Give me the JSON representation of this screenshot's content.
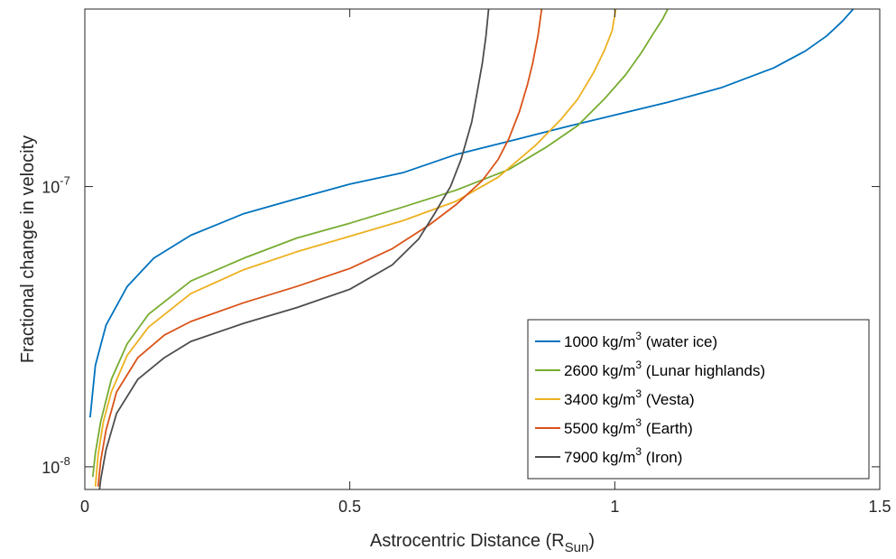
{
  "chart_data": {
    "type": "line",
    "xlabel": "Astrocentric Distance (R",
    "xlabel_sub": "Sun",
    "xlabel_close": ")",
    "ylabel": "Fractional change in velocity",
    "xlim": [
      0,
      1.5
    ],
    "ylim": [
      8.3e-09,
      4.3e-07
    ],
    "yscale": "log",
    "grid": false,
    "legend_position": "bottom-right",
    "x_ticks": [
      {
        "value": 0,
        "label": "0"
      },
      {
        "value": 0.5,
        "label": "0.5"
      },
      {
        "value": 1,
        "label": "1"
      },
      {
        "value": 1.5,
        "label": "1.5"
      }
    ],
    "y_ticks": [
      {
        "value": 1e-08,
        "base": "10",
        "exp": "-8"
      },
      {
        "value": 1e-07,
        "base": "10",
        "exp": "-7"
      }
    ],
    "series": [
      {
        "name": "1000 kg/m",
        "exp": "3",
        "suffix": " (water ice)",
        "color": "#0072BD",
        "x": [
          0.01,
          0.02,
          0.04,
          0.08,
          0.13,
          0.2,
          0.3,
          0.4,
          0.5,
          0.6,
          0.7,
          0.8,
          0.9,
          1.0,
          1.1,
          1.2,
          1.3,
          1.36,
          1.4,
          1.43,
          1.45
        ],
        "y": [
          1.5e-08,
          2.3e-08,
          3.2e-08,
          4.4e-08,
          5.55e-08,
          6.7e-08,
          8e-08,
          9.05e-08,
          1.02e-07,
          1.12e-07,
          1.3e-07,
          1.45e-07,
          1.62e-07,
          1.8e-07,
          2e-07,
          2.25e-07,
          2.65e-07,
          3.05e-07,
          3.45e-07,
          3.9e-07,
          4.3e-07
        ]
      },
      {
        "name": "2600 kg/m",
        "exp": "3",
        "suffix": " (Lunar highlands)",
        "color": "#77AC30",
        "x": [
          0.015,
          0.02,
          0.03,
          0.05,
          0.08,
          0.12,
          0.2,
          0.3,
          0.4,
          0.5,
          0.6,
          0.7,
          0.8,
          0.87,
          0.93,
          0.98,
          1.02,
          1.05,
          1.07,
          1.09,
          1.1
        ],
        "y": [
          9.2e-09,
          1.12e-08,
          1.45e-08,
          2.05e-08,
          2.75e-08,
          3.5e-08,
          4.6e-08,
          5.55e-08,
          6.55e-08,
          7.4e-08,
          8.45e-08,
          9.7e-08,
          1.15e-07,
          1.38e-07,
          1.65e-07,
          2.05e-07,
          2.5e-07,
          3e-07,
          3.45e-07,
          3.95e-07,
          4.3e-07
        ]
      },
      {
        "name": "3400 kg/m",
        "exp": "3",
        "suffix": " (Vesta)",
        "color": "#EDB120",
        "x": [
          0.02,
          0.025,
          0.035,
          0.05,
          0.08,
          0.12,
          0.2,
          0.3,
          0.4,
          0.5,
          0.6,
          0.7,
          0.78,
          0.85,
          0.9,
          0.93,
          0.96,
          0.98,
          0.995,
          1.002
        ],
        "y": [
          8.5e-09,
          1.1e-08,
          1.45e-08,
          1.85e-08,
          2.5e-08,
          3.15e-08,
          4.15e-08,
          5.05e-08,
          5.85e-08,
          6.65e-08,
          7.55e-08,
          8.85e-08,
          1.08e-07,
          1.4e-07,
          1.75e-07,
          2.05e-07,
          2.55e-07,
          3.05e-07,
          3.6e-07,
          4.3e-07
        ]
      },
      {
        "name": "5500 kg/m",
        "exp": "3",
        "suffix": " (Earth)",
        "color": "#D95319",
        "x": [
          0.025,
          0.03,
          0.04,
          0.06,
          0.1,
          0.15,
          0.2,
          0.3,
          0.4,
          0.5,
          0.58,
          0.65,
          0.7,
          0.75,
          0.78,
          0.8,
          0.82,
          0.835,
          0.845,
          0.855,
          0.862
        ],
        "y": [
          8.5e-09,
          1.05e-08,
          1.35e-08,
          1.85e-08,
          2.45e-08,
          2.95e-08,
          3.3e-08,
          3.85e-08,
          4.4e-08,
          5.1e-08,
          6e-08,
          7.3e-08,
          8.6e-08,
          1.05e-07,
          1.25e-07,
          1.48e-07,
          1.85e-07,
          2.3e-07,
          2.75e-07,
          3.45e-07,
          4.3e-07
        ]
      },
      {
        "name": "7900 kg/m",
        "exp": "3",
        "suffix": " (Iron)",
        "color": "#4D4D4D",
        "x": [
          0.025,
          0.03,
          0.04,
          0.06,
          0.1,
          0.15,
          0.2,
          0.3,
          0.4,
          0.5,
          0.58,
          0.63,
          0.66,
          0.69,
          0.71,
          0.73,
          0.74,
          0.75,
          0.757,
          0.762
        ],
        "y": [
          7.5e-09,
          9e-09,
          1.15e-08,
          1.55e-08,
          2.05e-08,
          2.45e-08,
          2.8e-08,
          3.25e-08,
          3.7e-08,
          4.3e-08,
          5.25e-08,
          6.5e-08,
          8e-08,
          1e-07,
          1.25e-07,
          1.7e-07,
          2.15e-07,
          2.75e-07,
          3.45e-07,
          4.3e-07
        ]
      }
    ]
  }
}
